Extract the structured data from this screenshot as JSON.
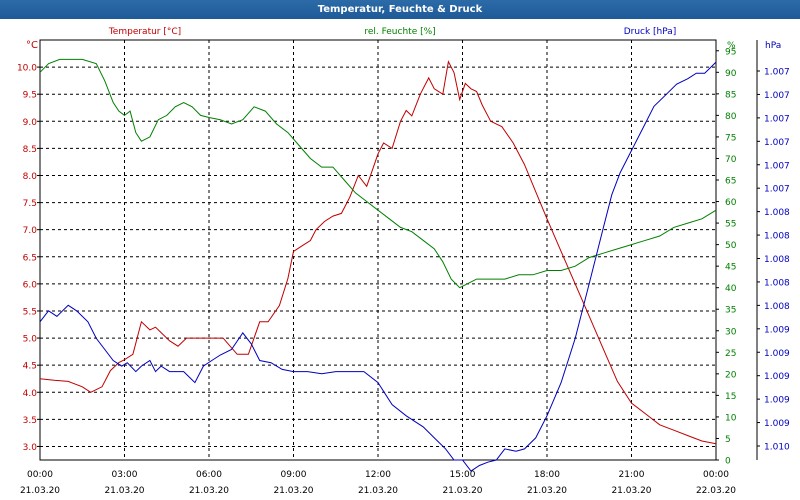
{
  "window": {
    "title": "Temperatur, Feuchte & Druck"
  },
  "colors": {
    "temperature": "#c00000",
    "humidity": "#008000",
    "pressure": "#0000c0",
    "grid": "#000000",
    "text": "#000000"
  },
  "chart_data": {
    "type": "line",
    "title": "Temperatur, Feuchte & Druck",
    "grid": true,
    "x_ticks": [
      {
        "time": "00:00",
        "date": "21.03.20"
      },
      {
        "time": "03:00",
        "date": "21.03.20"
      },
      {
        "time": "06:00",
        "date": "21.03.20"
      },
      {
        "time": "09:00",
        "date": "21.03.20"
      },
      {
        "time": "12:00",
        "date": "21.03.20"
      },
      {
        "time": "15:00",
        "date": "21.03.20"
      },
      {
        "time": "18:00",
        "date": "21.03.20"
      },
      {
        "time": "21:00",
        "date": "21.03.20"
      },
      {
        "time": "00:00",
        "date": "22.03.20"
      }
    ],
    "x_hours_range": [
      0,
      24
    ],
    "axes": {
      "left": {
        "unit": "°C",
        "min": 2.75,
        "max": 10.5,
        "ticks": [
          "3.0",
          "3.5",
          "4.0",
          "4.5",
          "5.0",
          "5.5",
          "6.0",
          "6.5",
          "7.0",
          "7.5",
          "8.0",
          "8.5",
          "9.0",
          "9.5",
          "10.0"
        ]
      },
      "mid": {
        "unit": "%",
        "min": 0,
        "max": 97.5,
        "ticks": [
          "0",
          "5",
          "10",
          "15",
          "20",
          "25",
          "30",
          "35",
          "40",
          "45",
          "50",
          "55",
          "60",
          "65",
          "70",
          "75",
          "80",
          "85",
          "90",
          "95"
        ]
      },
      "right": {
        "unit": "hPa",
        "min": 1.0066,
        "max": 1.0104,
        "ticks": [
          "1.007",
          "1.007",
          "1.007",
          "1.007",
          "1.007",
          "1.007",
          "1.008",
          "1.008",
          "1.008",
          "1.008",
          "1.008",
          "1.009",
          "1.009",
          "1.009",
          "1.009",
          "1.009",
          "1.010"
        ]
      }
    },
    "series": [
      {
        "name": "Temperatur [°C]",
        "axis": "left",
        "color": "#c00000",
        "x": [
          0,
          0.5,
          1,
          1.5,
          1.8,
          2.2,
          2.5,
          2.8,
          3,
          3.3,
          3.6,
          3.9,
          4.1,
          4.3,
          4.6,
          4.9,
          5.2,
          5.5,
          6,
          6.5,
          7,
          7.4,
          7.8,
          8.1,
          8.5,
          8.8,
          9,
          9.3,
          9.6,
          9.8,
          10.1,
          10.4,
          10.7,
          11,
          11.3,
          11.6,
          11.8,
          12,
          12.2,
          12.5,
          12.8,
          13,
          13.2,
          13.5,
          13.8,
          14,
          14.3,
          14.5,
          14.7,
          14.9,
          15.1,
          15.3,
          15.5,
          15.7,
          16,
          16.4,
          16.8,
          17.2,
          17.6,
          18,
          18.5,
          19,
          19.5,
          20,
          20.5,
          21,
          21.5,
          22,
          22.5,
          23,
          23.5,
          24
        ],
        "values": [
          4.25,
          4.22,
          4.2,
          4.1,
          4.0,
          4.1,
          4.4,
          4.55,
          4.6,
          4.7,
          5.3,
          5.15,
          5.2,
          5.1,
          4.95,
          4.85,
          5.0,
          5.0,
          5.0,
          5.0,
          4.7,
          4.7,
          5.3,
          5.3,
          5.6,
          6.1,
          6.6,
          6.7,
          6.8,
          7.0,
          7.15,
          7.25,
          7.3,
          7.6,
          8.0,
          7.8,
          8.1,
          8.4,
          8.6,
          8.5,
          9.0,
          9.2,
          9.1,
          9.5,
          9.8,
          9.6,
          9.5,
          10.1,
          9.9,
          9.4,
          9.7,
          9.6,
          9.55,
          9.3,
          9.0,
          8.9,
          8.6,
          8.2,
          7.7,
          7.2,
          6.6,
          6.0,
          5.4,
          4.8,
          4.2,
          3.8,
          3.6,
          3.4,
          3.3,
          3.2,
          3.1,
          3.05
        ]
      },
      {
        "name": "rel. Feuchte [%]",
        "axis": "mid",
        "color": "#008000",
        "x": [
          0,
          0.3,
          0.7,
          1,
          1.5,
          2,
          2.3,
          2.6,
          2.8,
          3,
          3.2,
          3.4,
          3.6,
          3.9,
          4.2,
          4.5,
          4.8,
          5.1,
          5.4,
          5.7,
          6,
          6.4,
          6.8,
          7.2,
          7.6,
          8,
          8.4,
          8.8,
          9.2,
          9.6,
          10,
          10.4,
          10.8,
          11.2,
          11.6,
          12,
          12.4,
          12.8,
          13.2,
          13.6,
          14,
          14.3,
          14.6,
          14.9,
          15.2,
          15.5,
          16,
          16.5,
          17,
          17.5,
          18,
          18.5,
          19,
          19.5,
          20,
          20.5,
          21,
          21.5,
          22,
          22.5,
          23,
          23.5,
          24
        ],
        "values": [
          90,
          92,
          93,
          93,
          93,
          92,
          88,
          83,
          81,
          80,
          81,
          76,
          74,
          75,
          79,
          80,
          82,
          83,
          82,
          80,
          79.5,
          79,
          78,
          79,
          82,
          81,
          78,
          76,
          73,
          70,
          68,
          68,
          65,
          62,
          60,
          58,
          56,
          54,
          53,
          51,
          49,
          46,
          42,
          40,
          41,
          42,
          42,
          42,
          43,
          43,
          44,
          44,
          45,
          47,
          48,
          49,
          50,
          51,
          52,
          54,
          55,
          56,
          58
        ]
      },
      {
        "name": "Druck [hPa]",
        "axis": "right",
        "color": "#0000c0",
        "x": [
          0,
          0.3,
          0.6,
          1,
          1.3,
          1.7,
          2,
          2.3,
          2.6,
          2.9,
          3.1,
          3.4,
          3.6,
          3.9,
          4.1,
          4.3,
          4.6,
          4.9,
          5.1,
          5.5,
          5.8,
          6.1,
          6.4,
          6.8,
          7.2,
          7.5,
          7.8,
          8.2,
          8.6,
          9,
          9.5,
          10,
          10.5,
          11,
          11.5,
          12,
          12.5,
          13,
          13.3,
          13.6,
          14,
          14.4,
          14.7,
          15,
          15.3,
          15.6,
          15.9,
          16.2,
          16.5,
          16.9,
          17.2,
          17.6,
          18,
          18.5,
          19,
          19.5,
          20,
          20.3,
          20.6,
          21,
          21.4,
          21.8,
          22.2,
          22.6,
          23,
          23.3,
          23.6,
          24
        ],
        "values": [
          1.00785,
          1.00795,
          1.0079,
          1.008,
          1.00795,
          1.00785,
          1.0077,
          1.0076,
          1.0075,
          1.00745,
          1.00748,
          1.0074,
          1.00745,
          1.0075,
          1.0074,
          1.00745,
          1.0074,
          1.0074,
          1.0074,
          1.0073,
          1.00745,
          1.0075,
          1.00755,
          1.0076,
          1.00775,
          1.00765,
          1.0075,
          1.00748,
          1.00742,
          1.0074,
          1.0074,
          1.00738,
          1.0074,
          1.0074,
          1.0074,
          1.0073,
          1.0071,
          1.007,
          1.00695,
          1.0069,
          1.0068,
          1.0067,
          1.0066,
          1.0066,
          1.0065,
          1.00655,
          1.00658,
          1.0066,
          1.0067,
          1.00668,
          1.0067,
          1.0068,
          1.007,
          1.0073,
          1.0077,
          1.0082,
          1.0087,
          1.009,
          1.0092,
          1.0094,
          1.0096,
          1.0098,
          1.0099,
          1.01,
          1.01005,
          1.0101,
          1.0101,
          1.0102
        ]
      }
    ]
  }
}
